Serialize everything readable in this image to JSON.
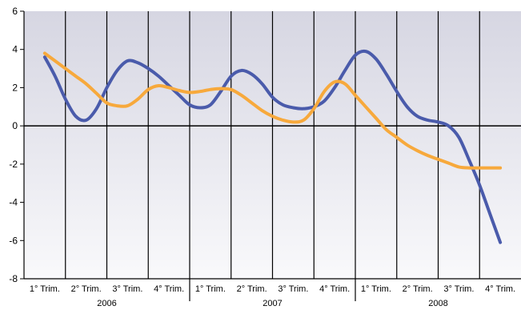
{
  "chart_data": {
    "type": "line",
    "title": "",
    "xlabel": "",
    "ylabel": "",
    "ylim": [
      -8,
      6
    ],
    "yticks": [
      6,
      4,
      2,
      0,
      -2,
      -4,
      -6,
      -8
    ],
    "grid": true,
    "categories": [
      "1° Trim.",
      "2° Trim.",
      "3° Trim.",
      "4° Trim.",
      "1° Trim.",
      "2° Trim.",
      "3° Trim.",
      "4° Trim.",
      "1° Trim.",
      "2° Trim.",
      "3° Trim.",
      "4° Trim."
    ],
    "groups": [
      {
        "label": "2006",
        "count": 4
      },
      {
        "label": "2007",
        "count": 4
      },
      {
        "label": "2008",
        "count": 4
      }
    ],
    "series": [
      {
        "color": "#4a5bab",
        "x": [
          0.0,
          0.25,
          0.5,
          0.75,
          1.0,
          1.25,
          1.5,
          1.75,
          2.0,
          2.25,
          2.5,
          2.75,
          3.0,
          3.25,
          3.5,
          3.75,
          4.0,
          4.25,
          4.5,
          4.75,
          5.0,
          5.25,
          5.5,
          5.75,
          6.0,
          6.25,
          6.5,
          6.75,
          7.0,
          7.25,
          7.5,
          7.75,
          8.0,
          8.25,
          8.5,
          8.75,
          9.0,
          9.25,
          9.5,
          9.75,
          10.0,
          10.25,
          10.5,
          10.75,
          11.0
        ],
        "values": [
          3.6,
          2.6,
          1.4,
          0.5,
          0.3,
          0.9,
          2.0,
          2.9,
          3.4,
          3.3,
          3.0,
          2.6,
          2.1,
          1.6,
          1.1,
          0.95,
          1.1,
          1.8,
          2.6,
          2.9,
          2.7,
          2.2,
          1.5,
          1.1,
          0.95,
          0.9,
          1.0,
          1.3,
          2.0,
          2.9,
          3.7,
          3.9,
          3.5,
          2.7,
          1.8,
          1.0,
          0.5,
          0.3,
          0.2,
          0.0,
          -0.6,
          -1.8,
          -3.1,
          -4.6,
          -6.1
        ]
      },
      {
        "color": "#f7a93c",
        "x": [
          0.0,
          0.25,
          0.5,
          0.75,
          1.0,
          1.25,
          1.5,
          1.75,
          2.0,
          2.25,
          2.5,
          2.75,
          3.0,
          3.25,
          3.5,
          3.75,
          4.0,
          4.25,
          4.5,
          4.75,
          5.0,
          5.25,
          5.5,
          5.75,
          6.0,
          6.25,
          6.5,
          6.75,
          7.0,
          7.25,
          7.5,
          7.75,
          8.0,
          8.25,
          8.5,
          8.75,
          9.0,
          9.25,
          9.5,
          9.75,
          10.0,
          10.25,
          10.5,
          10.75,
          11.0
        ],
        "values": [
          3.8,
          3.4,
          3.0,
          2.6,
          2.2,
          1.7,
          1.2,
          1.05,
          1.05,
          1.4,
          1.9,
          2.1,
          2.0,
          1.85,
          1.75,
          1.8,
          1.9,
          1.95,
          1.9,
          1.6,
          1.2,
          0.8,
          0.5,
          0.3,
          0.2,
          0.3,
          0.9,
          1.8,
          2.3,
          2.2,
          1.6,
          1.0,
          0.4,
          -0.2,
          -0.6,
          -1.0,
          -1.3,
          -1.55,
          -1.75,
          -1.95,
          -2.15,
          -2.2,
          -2.2,
          -2.2,
          -2.2
        ]
      }
    ]
  }
}
